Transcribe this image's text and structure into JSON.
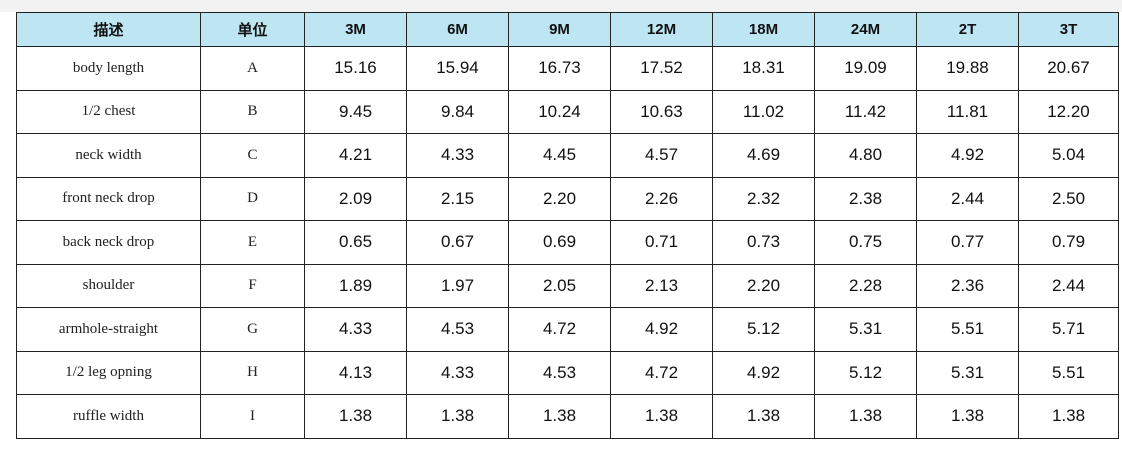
{
  "table": {
    "header": [
      "描述",
      "单位",
      "3M",
      "6M",
      "9M",
      "12M",
      "18M",
      "24M",
      "2T",
      "3T"
    ],
    "rows": [
      [
        "body length",
        "A",
        "15.16",
        "15.94",
        "16.73",
        "17.52",
        "18.31",
        "19.09",
        "19.88",
        "20.67"
      ],
      [
        "1/2 chest",
        "B",
        "9.45",
        "9.84",
        "10.24",
        "10.63",
        "11.02",
        "11.42",
        "11.81",
        "12.20"
      ],
      [
        "neck width",
        "C",
        "4.21",
        "4.33",
        "4.45",
        "4.57",
        "4.69",
        "4.80",
        "4.92",
        "5.04"
      ],
      [
        "front neck drop",
        "D",
        "2.09",
        "2.15",
        "2.20",
        "2.26",
        "2.32",
        "2.38",
        "2.44",
        "2.50"
      ],
      [
        "back neck drop",
        "E",
        "0.65",
        "0.67",
        "0.69",
        "0.71",
        "0.73",
        "0.75",
        "0.77",
        "0.79"
      ],
      [
        "shoulder",
        "F",
        "1.89",
        "1.97",
        "2.05",
        "2.13",
        "2.20",
        "2.28",
        "2.36",
        "2.44"
      ],
      [
        "armhole-straight",
        "G",
        "4.33",
        "4.53",
        "4.72",
        "4.92",
        "5.12",
        "5.31",
        "5.51",
        "5.71"
      ],
      [
        "1/2 leg opning",
        "H",
        "4.13",
        "4.33",
        "4.53",
        "4.72",
        "4.92",
        "5.12",
        "5.31",
        "5.51"
      ],
      [
        "ruffle width",
        "I",
        "1.38",
        "1.38",
        "1.38",
        "1.38",
        "1.38",
        "1.38",
        "1.38",
        "1.38"
      ]
    ]
  }
}
